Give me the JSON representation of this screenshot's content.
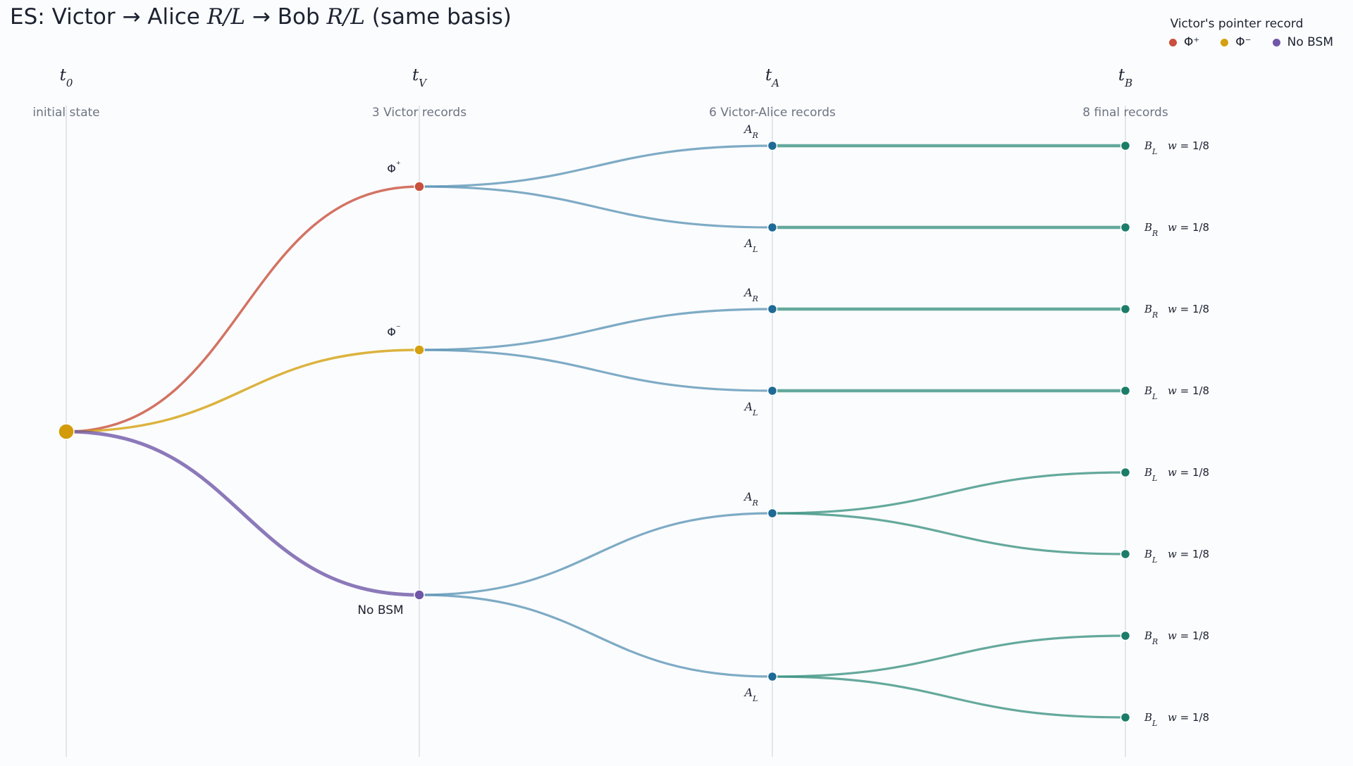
{
  "title": {
    "prefix": "ES: Victor → Alice ",
    "rl1": "R/L",
    "mid": " → Bob ",
    "rl2": "R/L",
    "suffix": " (same basis)"
  },
  "legend": {
    "title": "Victor's pointer record",
    "items": [
      {
        "label": "Φ⁺",
        "color": "#c9503c"
      },
      {
        "label": "Φ⁻",
        "color": "#d4a00f"
      },
      {
        "label": "No BSM",
        "color": "#7057a8"
      }
    ]
  },
  "stages": [
    {
      "label": "t",
      "sub": "0",
      "caption": "initial state"
    },
    {
      "label": "t",
      "sub": "V",
      "caption": "3 Victor records"
    },
    {
      "label": "t",
      "sub": "A",
      "caption": "6 Victor-Alice records"
    },
    {
      "label": "t",
      "sub": "B",
      "caption": "8 final records"
    }
  ],
  "colors": {
    "phi_plus": "#c9503c",
    "phi_minus": "#d4a00f",
    "no_bsm": "#7057a8",
    "alice_node": "#1f6a96",
    "alice_edge": "#5f96b6",
    "bob": "#1b7d68",
    "bob_edge": "#3f9483",
    "root": "#d39a0a"
  },
  "victor_nodes": [
    {
      "label": "Φ⁺",
      "color_key": "phi_plus"
    },
    {
      "label": "Φ⁻",
      "color_key": "phi_minus"
    },
    {
      "label": "No BSM",
      "color_key": "no_bsm"
    }
  ],
  "alice_nodes": [
    {
      "letter": "A",
      "sub": "R",
      "parent": 0
    },
    {
      "letter": "A",
      "sub": "L",
      "parent": 0
    },
    {
      "letter": "A",
      "sub": "R",
      "parent": 1
    },
    {
      "letter": "A",
      "sub": "L",
      "parent": 1
    },
    {
      "letter": "A",
      "sub": "R",
      "parent": 2
    },
    {
      "letter": "A",
      "sub": "L",
      "parent": 2
    }
  ],
  "bob_nodes": [
    {
      "letter": "B",
      "sub": "L",
      "weight": "w = 1/8",
      "parent": 0
    },
    {
      "letter": "B",
      "sub": "R",
      "weight": "w = 1/8",
      "parent": 1
    },
    {
      "letter": "B",
      "sub": "R",
      "weight": "w = 1/8",
      "parent": 2
    },
    {
      "letter": "B",
      "sub": "L",
      "weight": "w = 1/8",
      "parent": 3
    },
    {
      "letter": "B",
      "sub": "L",
      "weight": "w = 1/8",
      "parent": 4
    },
    {
      "letter": "B",
      "sub": "L",
      "weight": "w = 1/8",
      "parent": 4
    },
    {
      "letter": "B",
      "sub": "R",
      "weight": "w = 1/8",
      "parent": 5
    },
    {
      "letter": "B",
      "sub": "L",
      "weight": "w = 1/8",
      "parent": 5
    }
  ]
}
